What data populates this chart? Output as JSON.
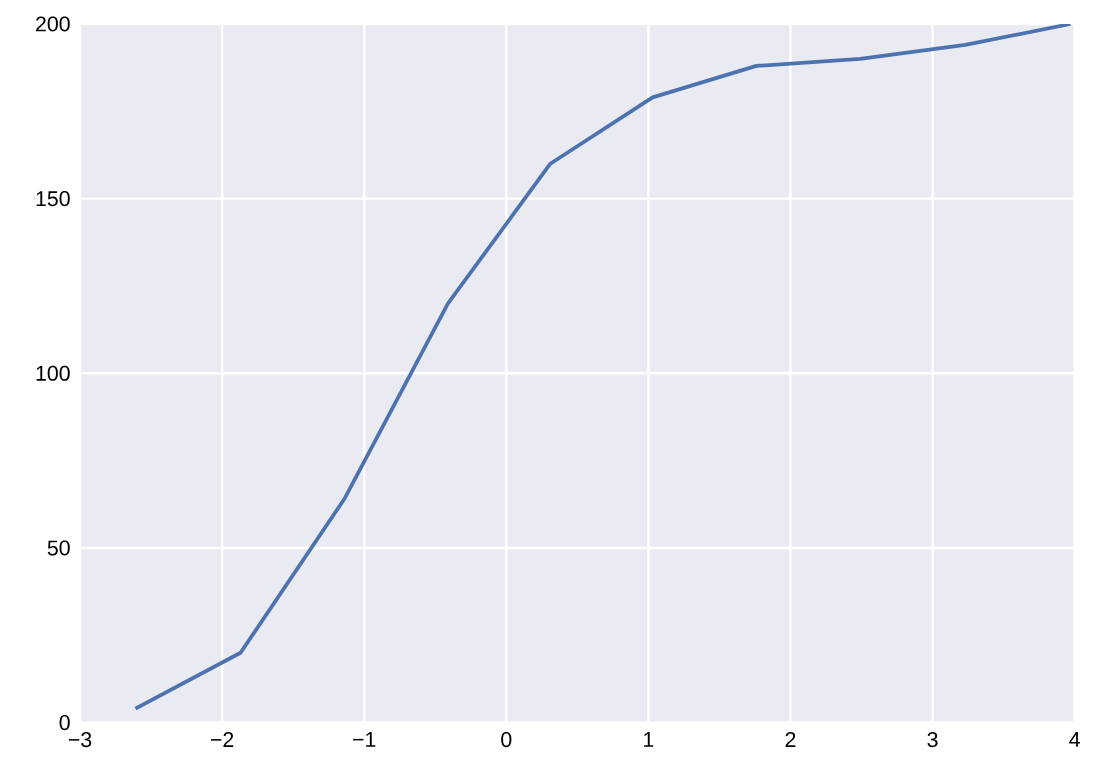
{
  "chart_data": {
    "type": "line",
    "x": [
      -2.61,
      -1.87,
      -1.14,
      -0.41,
      0.31,
      1.03,
      1.76,
      2.49,
      3.23,
      3.97
    ],
    "values": [
      4,
      20,
      64,
      120,
      160,
      179,
      188,
      190,
      194,
      200
    ],
    "color": "#4c72b0",
    "xlim": [
      -3,
      4
    ],
    "xticks": [
      {
        "value": -3,
        "label": "−3"
      },
      {
        "value": -2,
        "label": "−2"
      },
      {
        "value": -1,
        "label": "−1"
      },
      0,
      1,
      2,
      3,
      4
    ],
    "ylim": [
      0,
      200
    ],
    "yticks": [
      0,
      50,
      100,
      150,
      200
    ],
    "grid": true,
    "marker": "none",
    "line_style": "solid"
  }
}
